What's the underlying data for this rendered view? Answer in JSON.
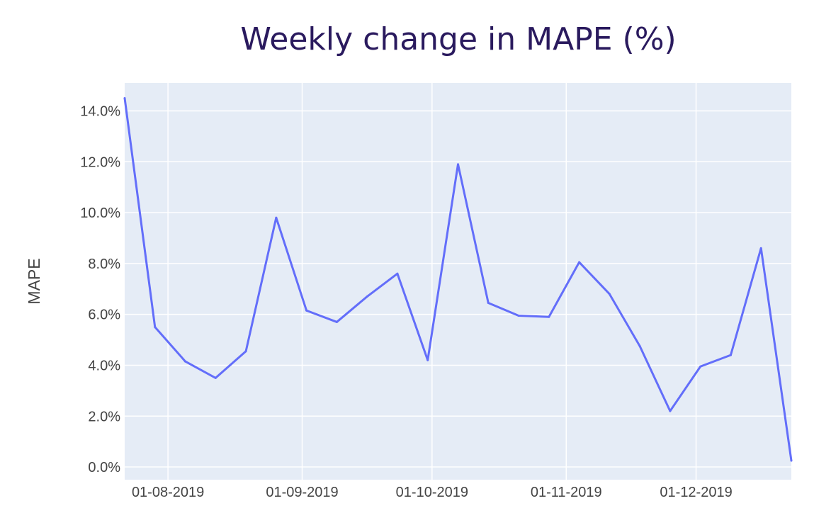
{
  "chart_data": {
    "type": "line",
    "title": "Weekly change in MAPE (%)",
    "xlabel": "",
    "ylabel": "MAPE",
    "x": [
      "2019-07-22",
      "2019-07-29",
      "2019-08-05",
      "2019-08-12",
      "2019-08-19",
      "2019-08-26",
      "2019-09-02",
      "2019-09-09",
      "2019-09-16",
      "2019-09-23",
      "2019-09-30",
      "2019-10-07",
      "2019-10-14",
      "2019-10-21",
      "2019-10-28",
      "2019-11-04",
      "2019-11-11",
      "2019-11-18",
      "2019-11-25",
      "2019-12-02",
      "2019-12-09",
      "2019-12-16",
      "2019-12-23"
    ],
    "series": [
      {
        "values": [
          14.5,
          5.5,
          4.15,
          3.5,
          4.55,
          9.8,
          6.15,
          5.7,
          6.7,
          7.6,
          4.2,
          11.9,
          6.45,
          5.95,
          5.9,
          8.05,
          6.8,
          4.75,
          2.2,
          3.95,
          4.4,
          8.6,
          0.25
        ]
      }
    ],
    "ylim": [
      -0.5,
      15.1
    ],
    "xlim": [
      "2019-07-22",
      "2019-12-23"
    ],
    "y_ticks": [
      {
        "value": 0,
        "label": "0.0%"
      },
      {
        "value": 2,
        "label": "2.0%"
      },
      {
        "value": 4,
        "label": "4.0%"
      },
      {
        "value": 6,
        "label": "6.0%"
      },
      {
        "value": 8,
        "label": "8.0%"
      },
      {
        "value": 10,
        "label": "10.0%"
      },
      {
        "value": 12,
        "label": "12.0%"
      },
      {
        "value": 14,
        "label": "14.0%"
      }
    ],
    "x_ticks": [
      {
        "date": "2019-08-01",
        "label": "01-08-2019"
      },
      {
        "date": "2019-09-01",
        "label": "01-09-2019"
      },
      {
        "date": "2019-10-01",
        "label": "01-10-2019"
      },
      {
        "date": "2019-11-01",
        "label": "01-11-2019"
      },
      {
        "date": "2019-12-01",
        "label": "01-12-2019"
      }
    ],
    "grid": true,
    "colors": {
      "plot_bg": "#e5ecf6",
      "grid": "#ffffff",
      "line": "#636efa",
      "title": "#2a1a5e"
    }
  }
}
